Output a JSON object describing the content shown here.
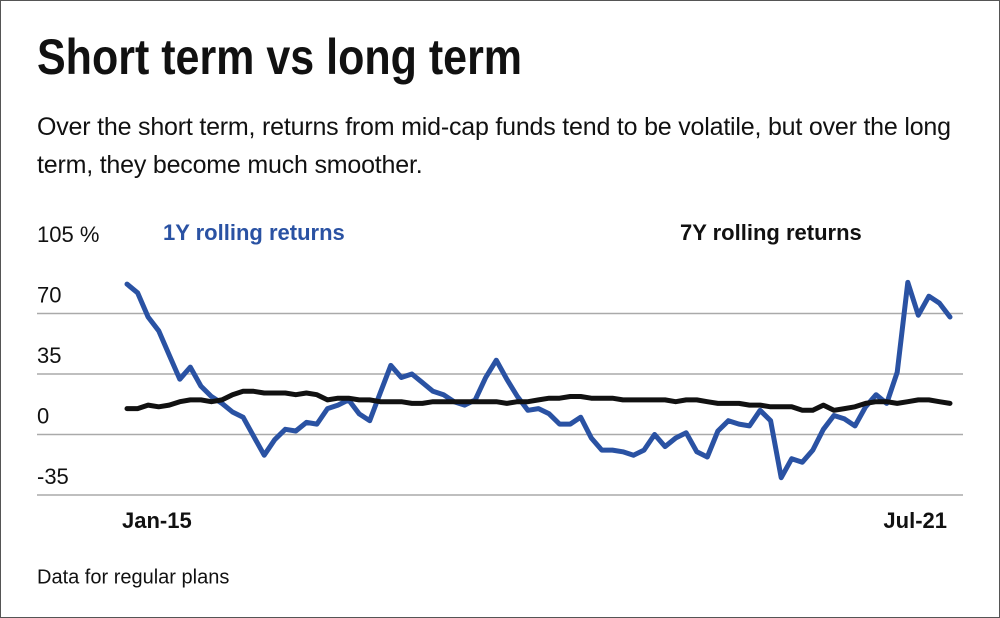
{
  "chart_data": {
    "type": "line",
    "title": "Short term vs long term",
    "subtitle": "Over the short term, returns from mid-cap funds tend to be volatile, but over the long term, they become much smoother.",
    "note": "Data for regular plans",
    "categories": [
      "Jan-15",
      null,
      null,
      null,
      null,
      null,
      null,
      null,
      null,
      null,
      null,
      null,
      null,
      null,
      null,
      null,
      null,
      null,
      null,
      null,
      null,
      null,
      null,
      null,
      null,
      null,
      null,
      null,
      null,
      null,
      null,
      null,
      null,
      null,
      null,
      null,
      null,
      null,
      null,
      null,
      null,
      null,
      null,
      null,
      null,
      null,
      null,
      null,
      null,
      null,
      null,
      null,
      null,
      null,
      null,
      null,
      null,
      null,
      null,
      null,
      null,
      null,
      null,
      null,
      null,
      null,
      null,
      null,
      null,
      null,
      null,
      null,
      null,
      null,
      null,
      null,
      null,
      null,
      "Jul-21"
    ],
    "series": [
      {
        "name": "1Y rolling returns",
        "color": "#2a52a3",
        "values": [
          87,
          82,
          68,
          60,
          46,
          32,
          39,
          28,
          22,
          18,
          13,
          10,
          -1,
          -12,
          -3,
          3,
          2,
          7,
          6,
          15,
          17,
          20,
          12,
          8,
          24,
          40,
          33,
          35,
          30,
          25,
          23,
          19,
          17,
          20,
          33,
          43,
          32,
          22,
          14,
          15,
          12,
          6,
          6,
          10,
          -2,
          -9,
          -9,
          -10,
          -12,
          -9,
          0,
          -7,
          -2,
          1,
          -10,
          -13,
          2,
          8,
          6,
          5,
          14,
          8,
          -25,
          -14,
          -16,
          -9,
          3,
          11,
          9,
          5,
          16,
          23,
          18,
          36,
          88,
          69,
          80,
          76,
          68
        ]
      },
      {
        "name": "7Y rolling returns",
        "color": "#111111",
        "values": [
          15,
          15,
          17,
          16,
          17,
          19,
          20,
          20,
          19,
          20,
          23,
          25,
          25,
          24,
          24,
          24,
          23,
          24,
          23,
          20,
          21,
          21,
          20,
          20,
          19,
          19,
          19,
          18,
          18,
          19,
          19,
          19,
          19,
          19,
          19,
          19,
          18,
          19,
          19,
          20,
          21,
          21,
          22,
          22,
          21,
          21,
          21,
          20,
          20,
          20,
          20,
          20,
          19,
          20,
          20,
          19,
          18,
          18,
          18,
          17,
          17,
          16,
          16,
          16,
          14,
          14,
          17,
          14,
          15,
          16,
          18,
          19,
          19,
          18,
          19,
          20,
          20,
          19,
          18
        ]
      }
    ],
    "ylim": [
      -35,
      105
    ],
    "yticks": [
      -35,
      0,
      35,
      70,
      {
        "value": 105,
        "label": "105 %"
      }
    ],
    "grid": true
  }
}
